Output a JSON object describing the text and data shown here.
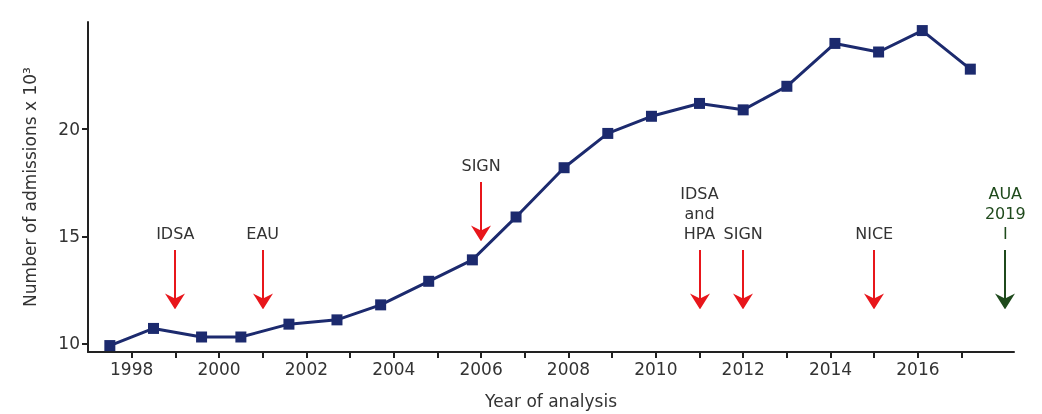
{
  "chart_data": {
    "type": "line",
    "xlabel": "Year of analysis",
    "ylabel": "Number of admissions x 10³",
    "x": [
      1997.5,
      1998.5,
      1999.6,
      2000.5,
      2001.6,
      2002.7,
      2003.7,
      2004.8,
      2005.8,
      2006.8,
      2007.9,
      2008.9,
      2009.9,
      2011.0,
      2012.0,
      2013.0,
      2014.1,
      2015.1,
      2016.1,
      2017.2
    ],
    "series": [
      {
        "color": "#1c2a6e",
        "values": [
          9.9,
          10.7,
          10.3,
          10.3,
          10.9,
          11.1,
          11.8,
          12.9,
          13.9,
          15.9,
          18.2,
          19.8,
          20.6,
          21.2,
          20.9,
          22.0,
          24.0,
          23.6,
          24.6,
          22.8
        ]
      }
    ],
    "xlim": [
      1997,
      2018.2
    ],
    "xticks": [
      1998,
      {
        "value": 1999,
        "label": null
      },
      2000,
      {
        "value": 2001,
        "label": null
      },
      2002,
      {
        "value": 2003,
        "label": null
      },
      2004,
      {
        "value": 2005,
        "label": null
      },
      2006,
      {
        "value": 2007,
        "label": null
      },
      2008,
      {
        "value": 2009,
        "label": null
      },
      2010,
      {
        "value": 2011,
        "label": null
      },
      2012,
      {
        "value": 2013,
        "label": null
      },
      2014,
      {
        "value": 2015,
        "label": null
      },
      2016,
      {
        "value": 2017,
        "label": null
      }
    ],
    "ylim": [
      9.6,
      25
    ],
    "yticks": [
      10,
      15,
      20
    ],
    "ref_lines": [
      {
        "axis": "x",
        "value": 1999,
        "label": "IDSA",
        "color": "#e8161b"
      },
      {
        "axis": "x",
        "value": 2001,
        "label": "EAU",
        "color": "#e8161b"
      },
      {
        "axis": "x",
        "value": 2006,
        "label": "SIGN",
        "color": "#e8161b"
      },
      {
        "axis": "x",
        "value": 2011,
        "label": "IDSA\nand\nHPA",
        "color": "#e8161b"
      },
      {
        "axis": "x",
        "value": 2012,
        "label": "SIGN",
        "color": "#e8161b"
      },
      {
        "axis": "x",
        "value": 2015,
        "label": "NICE",
        "color": "#e8161b"
      },
      {
        "axis": "x",
        "value": 2018,
        "label": "AUA\n2019\nI",
        "color": "#1f4a1c"
      }
    ],
    "marker": "square",
    "line_style": "solid",
    "grid": false
  }
}
